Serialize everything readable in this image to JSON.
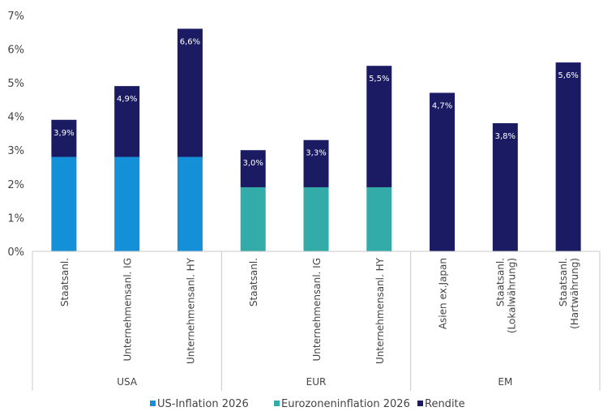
{
  "chart_data": {
    "type": "bar",
    "stacked": true,
    "categories": [
      "Staatsanl.",
      "Unternehmensanl. IG",
      "Unternehmensanl. HY",
      "Staatsanl.",
      "Unternehmensanl. IG",
      "Unternehmensanl. HY",
      "Asien ex.Japan",
      "Staatsanl. (Lokalwährung)",
      "Staatsanl. (Hartwährung)"
    ],
    "category_lines": [
      [
        "Staatsanl."
      ],
      [
        "Unternehmensanl. IG"
      ],
      [
        "Unternehmensanl. HY"
      ],
      [
        "Staatsanl."
      ],
      [
        "Unternehmensanl. IG"
      ],
      [
        "Unternehmensanl. HY"
      ],
      [
        "Asien ex.Japan"
      ],
      [
        "Staatsanl.",
        "(Lokalwährung)"
      ],
      [
        "Staatsanl.",
        "(Hartwährung)"
      ]
    ],
    "groups": [
      {
        "label": "USA",
        "count": 3
      },
      {
        "label": "EUR",
        "count": 3
      },
      {
        "label": "EM",
        "count": 3
      }
    ],
    "series": [
      {
        "name": "US-Inflation 2026",
        "color": "#1390D8",
        "values": [
          2.8,
          2.8,
          2.8,
          0,
          0,
          0,
          0,
          0,
          0
        ]
      },
      {
        "name": "Eurozoneninflation 2026",
        "color": "#33ABA8",
        "values": [
          0,
          0,
          0,
          1.9,
          1.9,
          1.9,
          0,
          0,
          0
        ]
      },
      {
        "name": "Rendite",
        "color": "#1A1B63",
        "values": [
          1.1,
          2.1,
          3.8,
          1.1,
          1.4,
          3.6,
          4.7,
          3.8,
          5.6
        ]
      }
    ],
    "data_labels": [
      "3,9%",
      "4,9%",
      "6,6%",
      "3,0%",
      "3,3%",
      "5,5%",
      "4,7%",
      "3,8%",
      "5,6%"
    ],
    "ylim": [
      0,
      7
    ],
    "yticks": [
      "0%",
      "1%",
      "2%",
      "3%",
      "4%",
      "5%",
      "6%",
      "7%"
    ],
    "grid": false,
    "legend": "bottom"
  }
}
